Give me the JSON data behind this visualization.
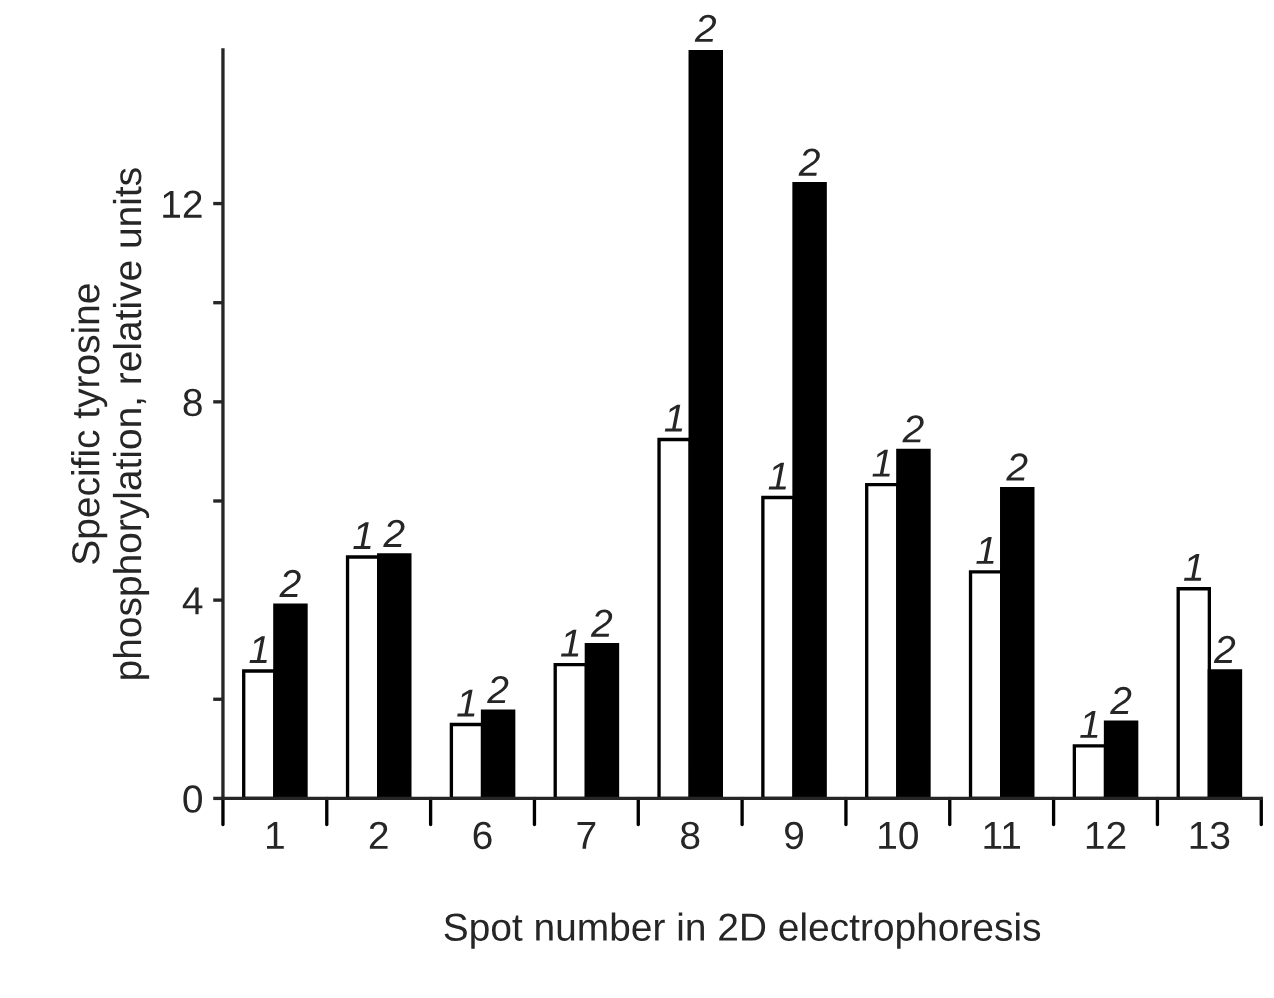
{
  "chart_data": {
    "type": "bar",
    "xlabel": "Spot number in 2D electrophoresis",
    "ylabel": "Specific tyrosine\nphosphorylation, relative units",
    "categories": [
      "1",
      "2",
      "6",
      "7",
      "8",
      "9",
      "10",
      "11",
      "12",
      "13"
    ],
    "series": [
      {
        "name": "1",
        "color": "#ffffff",
        "values": [
          2.57,
          4.87,
          1.49,
          2.7,
          7.24,
          6.07,
          6.33,
          4.57,
          1.06,
          4.23
        ]
      },
      {
        "name": "2",
        "color": "#000000",
        "values": [
          3.9,
          4.91,
          1.76,
          3.1,
          15.1,
          12.4,
          7.02,
          6.25,
          1.54,
          2.57
        ]
      }
    ],
    "ylim": [
      0,
      15.1
    ],
    "yticks": [
      0,
      {
        "value": 2,
        "label": null
      },
      4,
      {
        "value": 6,
        "label": null
      },
      8,
      {
        "value": 10,
        "label": null
      },
      12
    ],
    "grid": false,
    "legend": false
  }
}
